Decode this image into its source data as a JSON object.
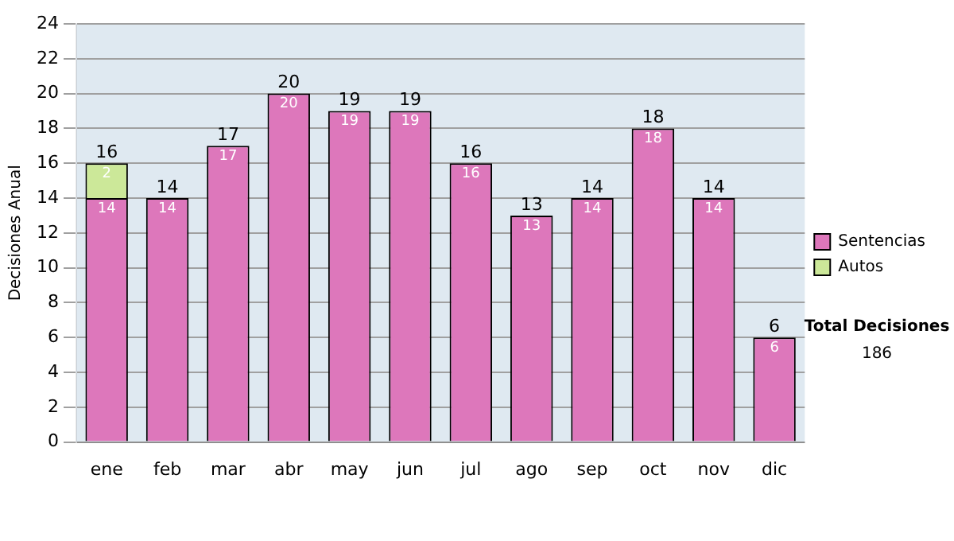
{
  "chart_data": {
    "type": "bar",
    "stacked": true,
    "ylabel": "Decisiones Anual",
    "categories": [
      "ene",
      "feb",
      "mar",
      "abr",
      "may",
      "jun",
      "jul",
      "ago",
      "sep",
      "oct",
      "nov",
      "dic"
    ],
    "series": [
      {
        "name": "Sentencias",
        "color": "#dd77bb",
        "values": [
          14,
          14,
          17,
          20,
          19,
          19,
          16,
          13,
          14,
          18,
          14,
          6
        ]
      },
      {
        "name": "Autos",
        "color": "#cce899",
        "values": [
          2,
          null,
          null,
          null,
          null,
          null,
          null,
          null,
          null,
          null,
          null,
          null
        ]
      }
    ],
    "totals": [
      "16",
      "14",
      "17",
      "20",
      "19",
      "19",
      "16",
      "13",
      "14",
      "18",
      "14",
      "6"
    ],
    "data_labels": true,
    "ylim": [
      0,
      24
    ],
    "yticks": [
      0,
      2,
      4,
      6,
      8,
      10,
      12,
      14,
      16,
      18,
      20,
      22,
      24
    ],
    "grid": "y",
    "legend": "right",
    "annotations": [
      "Total Decisiones",
      "186"
    ]
  }
}
